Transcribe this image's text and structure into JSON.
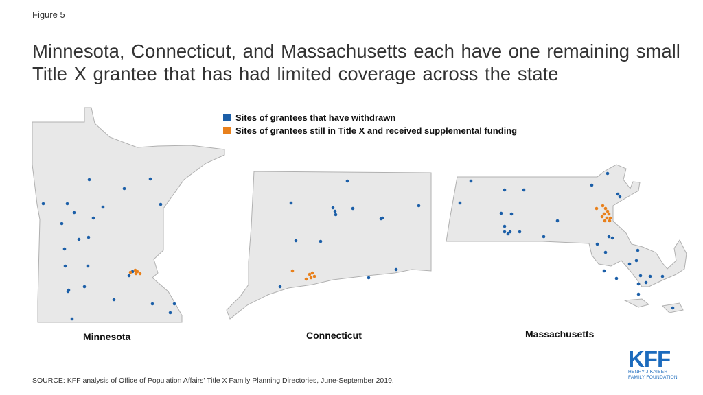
{
  "figure_label": "Figure 5",
  "title": "Minnesota, Connecticut, and Massachusetts each have one remaining small Title X grantee that has had limited coverage across the state",
  "legend": [
    {
      "label": "Sites of grantees that have withdrawn",
      "color": "#1c5fa8"
    },
    {
      "label": "Sites of grantees still in Title X and received supplemental funding",
      "color": "#e8801c"
    }
  ],
  "states": {
    "minnesota": {
      "label": "Minnesota"
    },
    "connecticut": {
      "label": "Connecticut"
    },
    "massachusetts": {
      "label": "Massachusetts"
    }
  },
  "source": "SOURCE: KFF analysis of Office of Population Affairs' Title X Family Planning Directories, June-September 2019.",
  "logo": {
    "main": "KFF",
    "line1": "HENRY J KAISER",
    "line2": "FAMILY FOUNDATION"
  },
  "colors": {
    "state_fill": "#e8e8e8",
    "state_stroke": "#b0b0b0",
    "withdrawn": "#1c5fa8",
    "supplemental": "#e8801c"
  }
}
